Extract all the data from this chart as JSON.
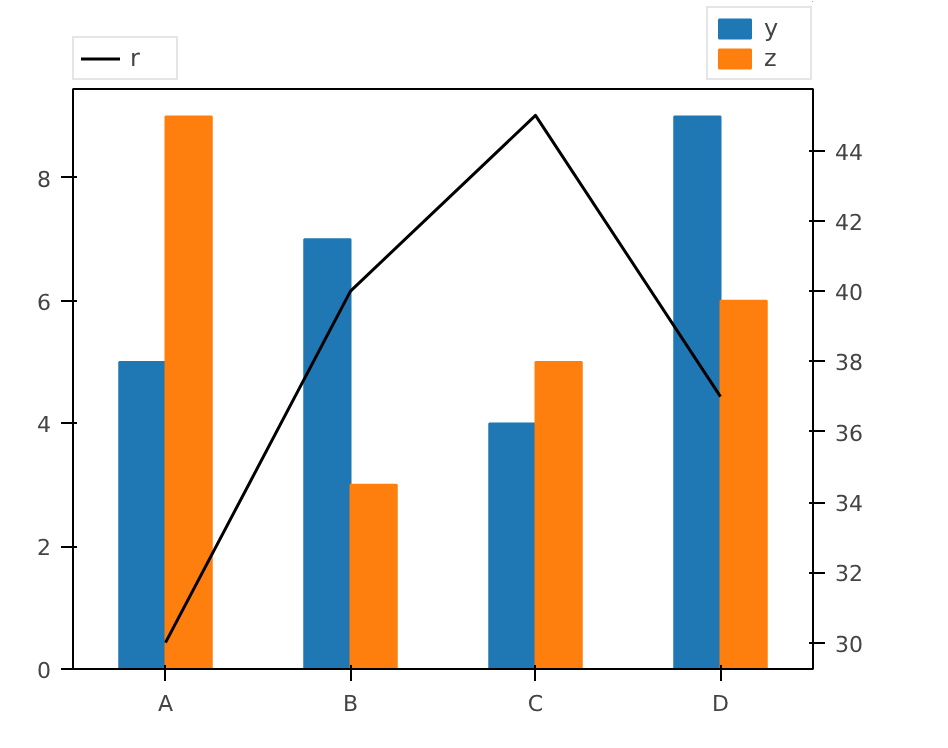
{
  "chart_data": {
    "type": "bar",
    "categories": [
      "A",
      "B",
      "C",
      "D"
    ],
    "series": [
      {
        "name": "y",
        "color": "#1f77b4",
        "values": [
          5,
          7,
          4,
          9
        ]
      },
      {
        "name": "z",
        "color": "#ff7f0e",
        "values": [
          9,
          3,
          5,
          6
        ]
      },
      {
        "name": "r",
        "color": "#000000",
        "type": "line",
        "axis": "y2",
        "values": [
          30,
          40,
          45,
          37
        ]
      }
    ],
    "ylim": [
      0,
      9.45
    ],
    "yticks": [
      0,
      2,
      4,
      6,
      8
    ],
    "y2lim": [
      29.25,
      45.75
    ],
    "y2ticks": [
      30,
      32,
      34,
      36,
      38,
      40,
      42,
      44
    ],
    "grid": false,
    "legend": "top",
    "marker": "none",
    "line_style": "solid"
  }
}
